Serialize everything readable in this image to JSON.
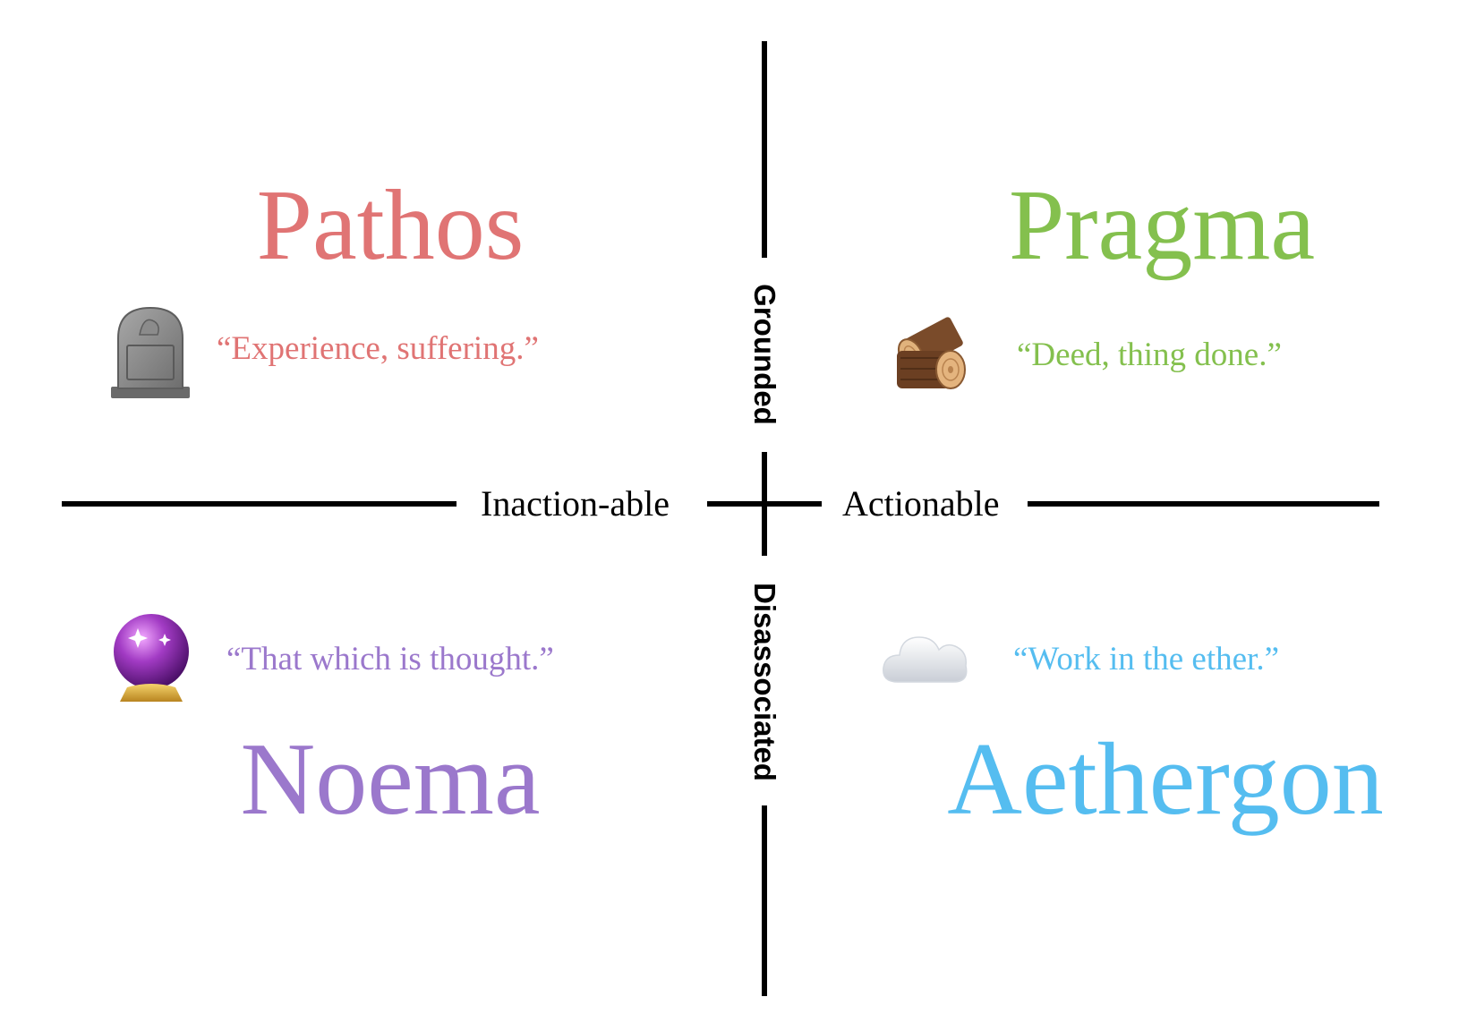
{
  "axes": {
    "vertical_top_label": "Grounded",
    "vertical_bottom_label": "Disassociated",
    "horizontal_left_label": "Inaction-able",
    "horizontal_right_label": "Actionable"
  },
  "quadrants": {
    "top_left": {
      "title": "Pathos",
      "quote": "“Experience, suffering.”",
      "icon": "headstone-icon",
      "color": "#e07474"
    },
    "top_right": {
      "title": "Pragma",
      "quote": "“Deed, thing done.”",
      "icon": "wood-logs-icon",
      "color": "#84c04e"
    },
    "bottom_left": {
      "title": "Noema",
      "quote": "“That which is thought.”",
      "icon": "crystal-ball-icon",
      "color": "#9b78cc"
    },
    "bottom_right": {
      "title": "Aethergon",
      "quote": "“Work in the ether.”",
      "icon": "cloud-icon",
      "color": "#55bdf0"
    }
  }
}
